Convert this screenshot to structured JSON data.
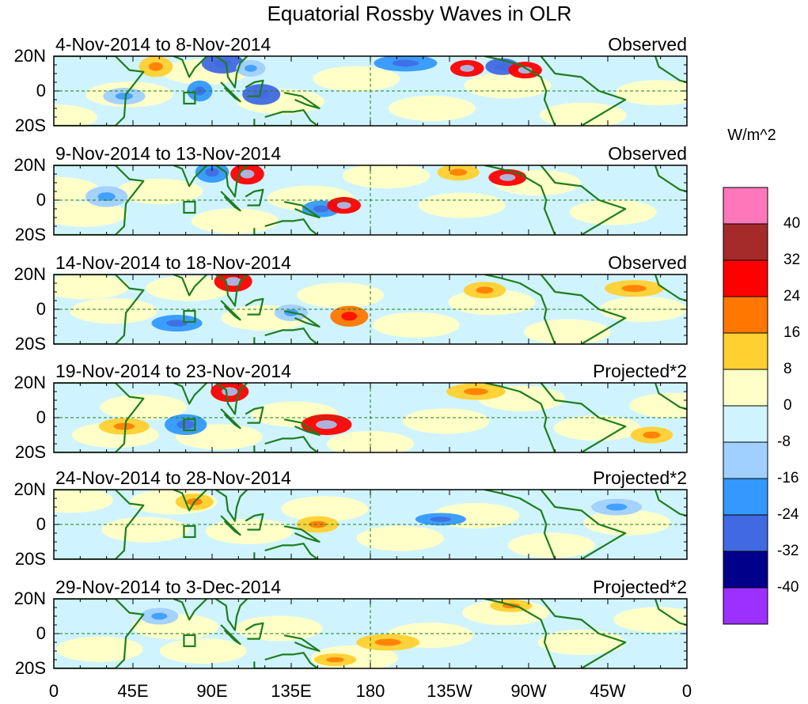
{
  "title": "Equatorial Rossby Waves in OLR",
  "units": "W/m^2",
  "panels": [
    {
      "label": "4-Nov-2014 to 8-Nov-2014",
      "tag": "Observed"
    },
    {
      "label": "9-Nov-2014 to 13-Nov-2014",
      "tag": "Observed"
    },
    {
      "label": "14-Nov-2014 to 18-Nov-2014",
      "tag": "Observed"
    },
    {
      "label": "19-Nov-2014 to 23-Nov-2014",
      "tag": "Projected*2"
    },
    {
      "label": "24-Nov-2014 to 28-Nov-2014",
      "tag": "Projected*2"
    },
    {
      "label": "29-Nov-2014 to 3-Dec-2014",
      "tag": "Projected*2"
    }
  ],
  "lat_labels": [
    "20N",
    "0",
    "20S"
  ],
  "lon_labels": [
    "0",
    "45E",
    "90E",
    "135E",
    "180",
    "135W",
    "90W",
    "45W",
    "0"
  ],
  "colorbar": {
    "labels": [
      "40",
      "32",
      "24",
      "16",
      "8",
      "0",
      "-8",
      "-16",
      "-24",
      "-32",
      "-40"
    ],
    "colors": [
      "#ff77bb",
      "#a52a2a",
      "#ff0000",
      "#ff7700",
      "#ffd030",
      "#ffffc8",
      "#d0f4ff",
      "#a0d0ff",
      "#3399ff",
      "#4169e1",
      "#00008b",
      "#9b30ff"
    ]
  },
  "colors": {
    "coast": "#1e7d1e",
    "reference_line": "#1e7d1e"
  }
}
